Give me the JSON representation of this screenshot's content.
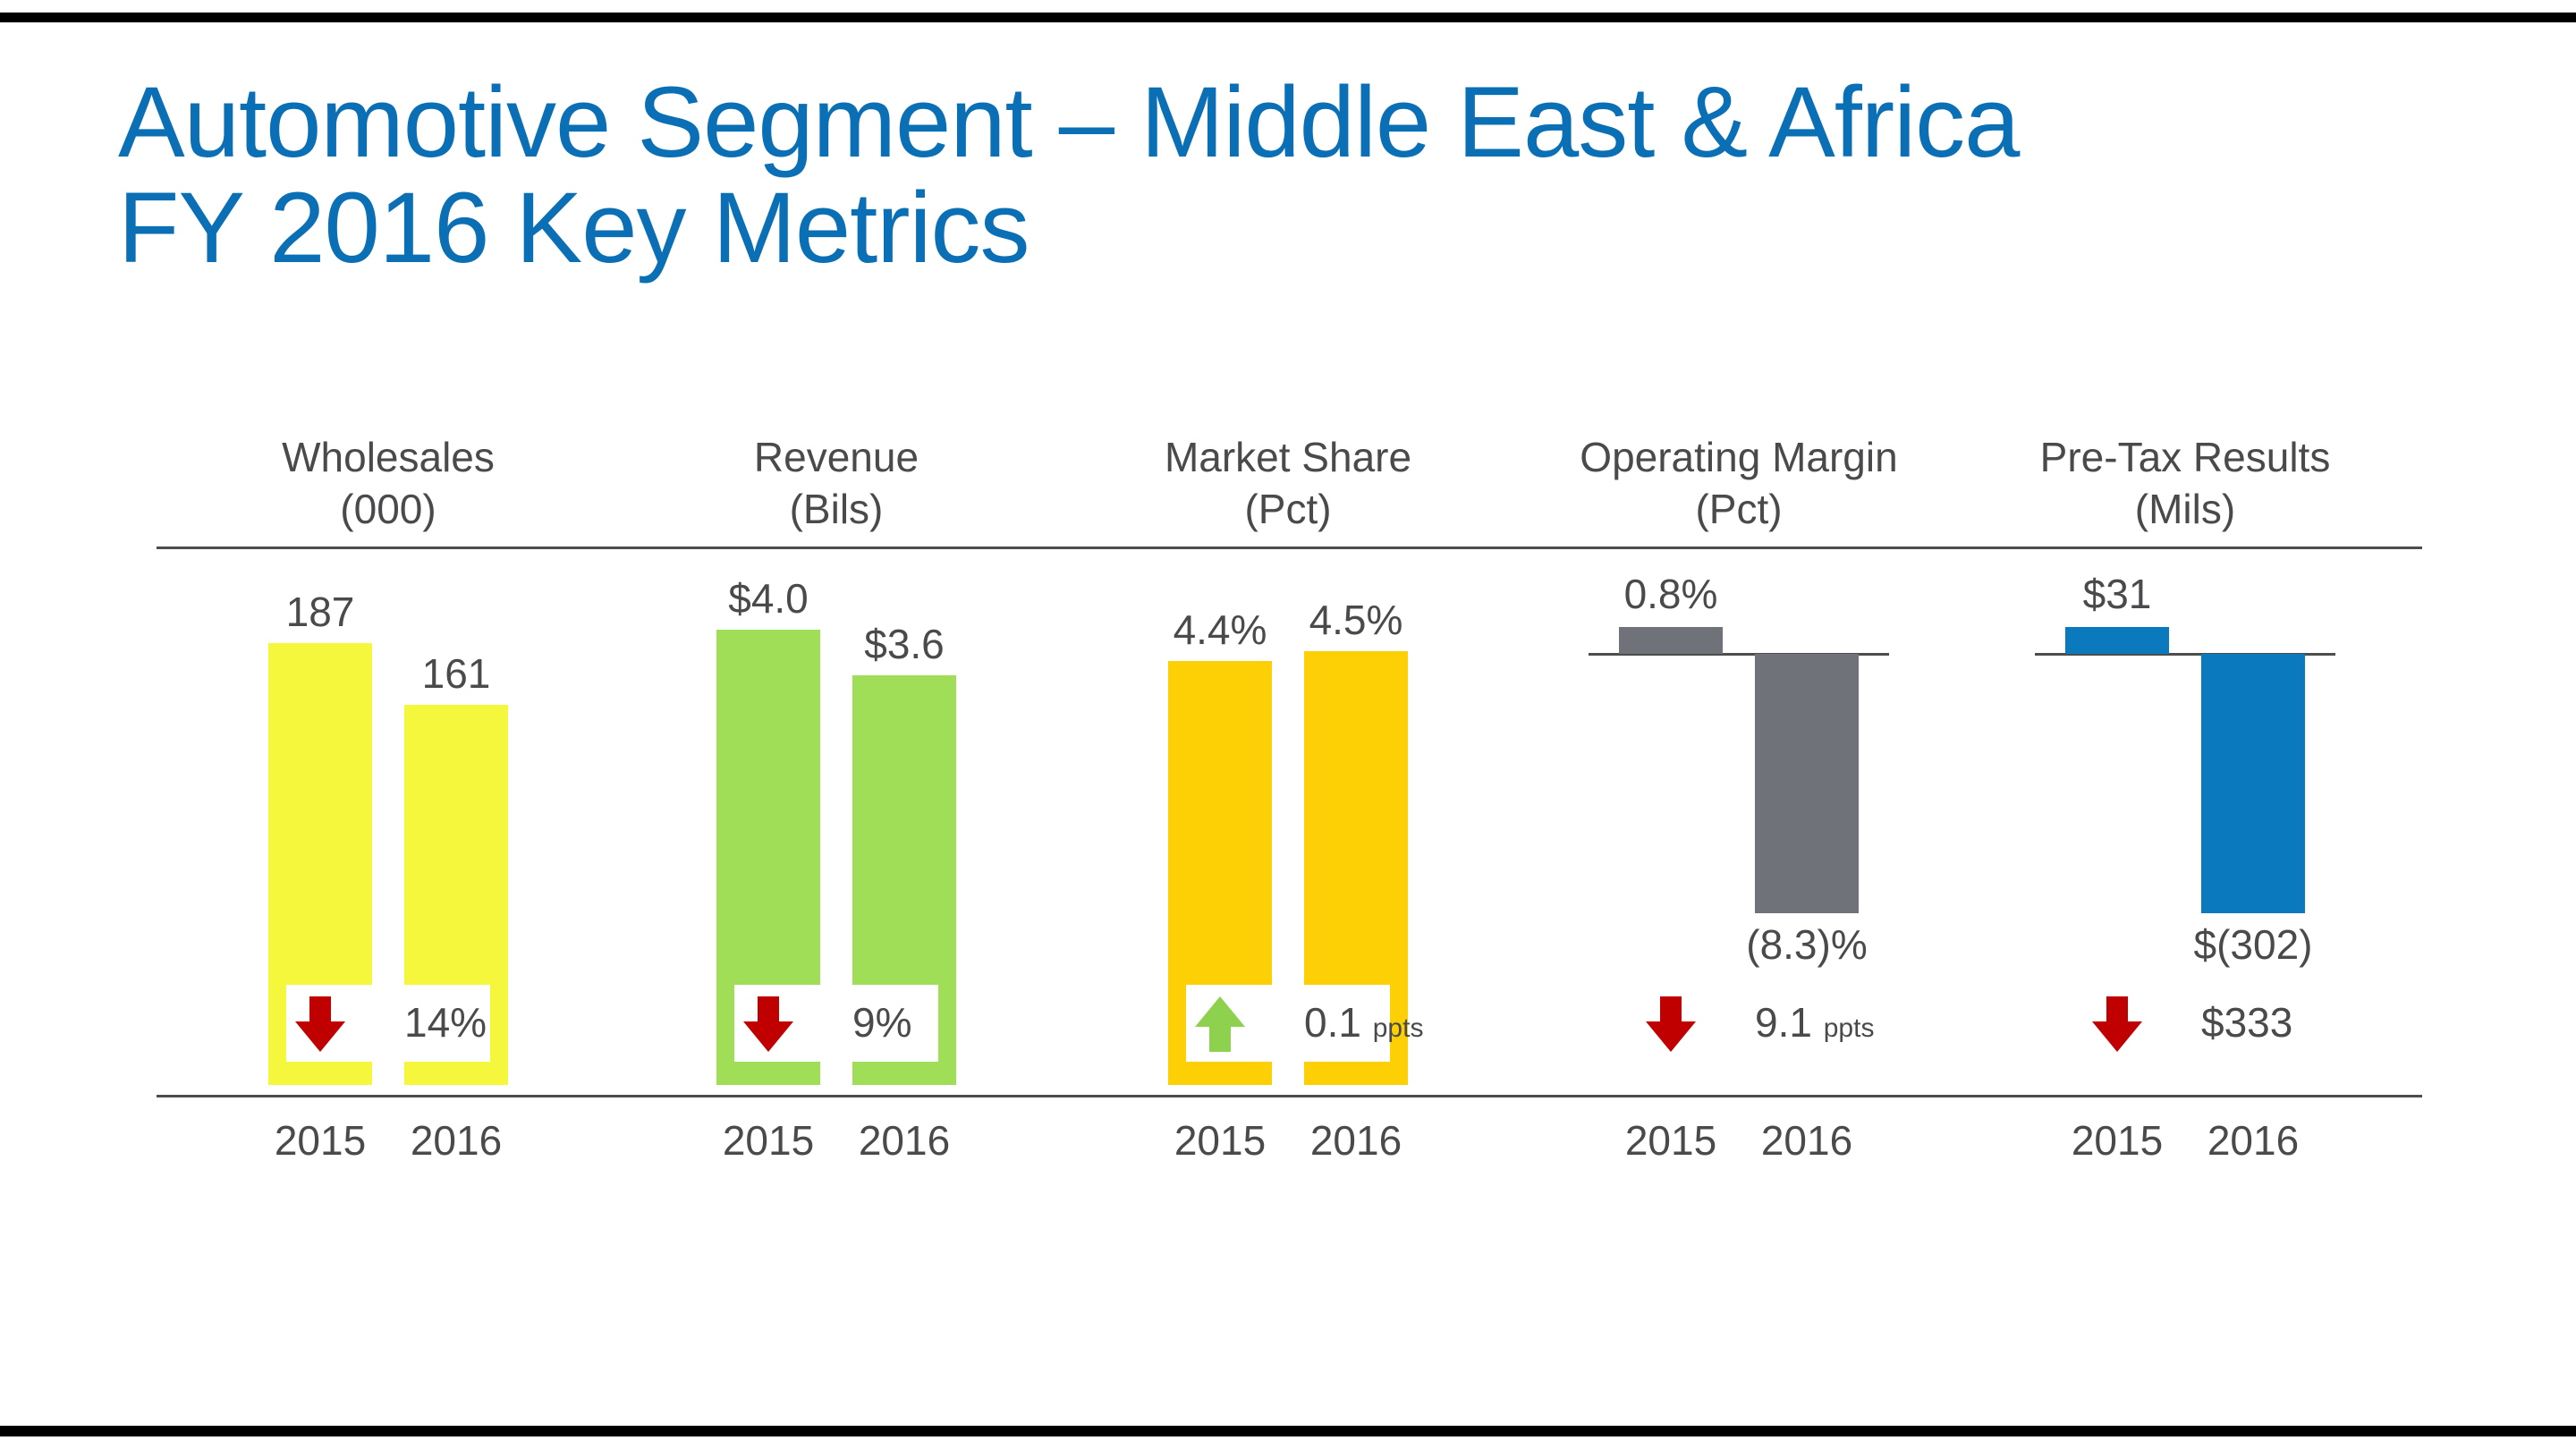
{
  "title": {
    "line1": "Automotive Segment – Middle East & Africa",
    "line2": "FY 2016 Key Metrics"
  },
  "chart_data": [
    {
      "type": "bar",
      "title": "Wholesales",
      "unit": "(000)",
      "categories": [
        "2015",
        "2016"
      ],
      "values": [
        187,
        161
      ],
      "labels": [
        "187",
        "161"
      ],
      "change": {
        "direction": "down",
        "value": "14%",
        "unit": ""
      },
      "color": "#f5f73c"
    },
    {
      "type": "bar",
      "title": "Revenue",
      "unit": "(Bils)",
      "categories": [
        "2015",
        "2016"
      ],
      "values": [
        4.0,
        3.6
      ],
      "labels": [
        "$4.0",
        "$3.6"
      ],
      "change": {
        "direction": "down",
        "value": "9%",
        "unit": ""
      },
      "color": "#a0de58"
    },
    {
      "type": "bar",
      "title": "Market Share",
      "unit": "(Pct)",
      "categories": [
        "2015",
        "2016"
      ],
      "values": [
        4.4,
        4.5
      ],
      "labels": [
        "4.4%",
        "4.5%"
      ],
      "change": {
        "direction": "up",
        "value": "0.1",
        "unit": "ppts"
      },
      "color": "#fdd005"
    },
    {
      "type": "bar",
      "title": "Operating Margin",
      "unit": "(Pct)",
      "categories": [
        "2015",
        "2016"
      ],
      "values": [
        0.8,
        -8.3
      ],
      "labels": [
        "0.8%",
        "(8.3)%"
      ],
      "change": {
        "direction": "down",
        "value": "9.1",
        "unit": "ppts"
      },
      "color": "#6f7279"
    },
    {
      "type": "bar",
      "title": "Pre-Tax Results",
      "unit": "(Mils)",
      "categories": [
        "2015",
        "2016"
      ],
      "values": [
        31,
        -302
      ],
      "labels": [
        "$31",
        "$(302)"
      ],
      "change": {
        "direction": "down",
        "value": "$333",
        "unit": ""
      },
      "color": "#0a79bd"
    }
  ],
  "colors": {
    "title": "#0a6fb5",
    "down_arrow": "#c00000",
    "up_arrow": "#8dd14f"
  }
}
